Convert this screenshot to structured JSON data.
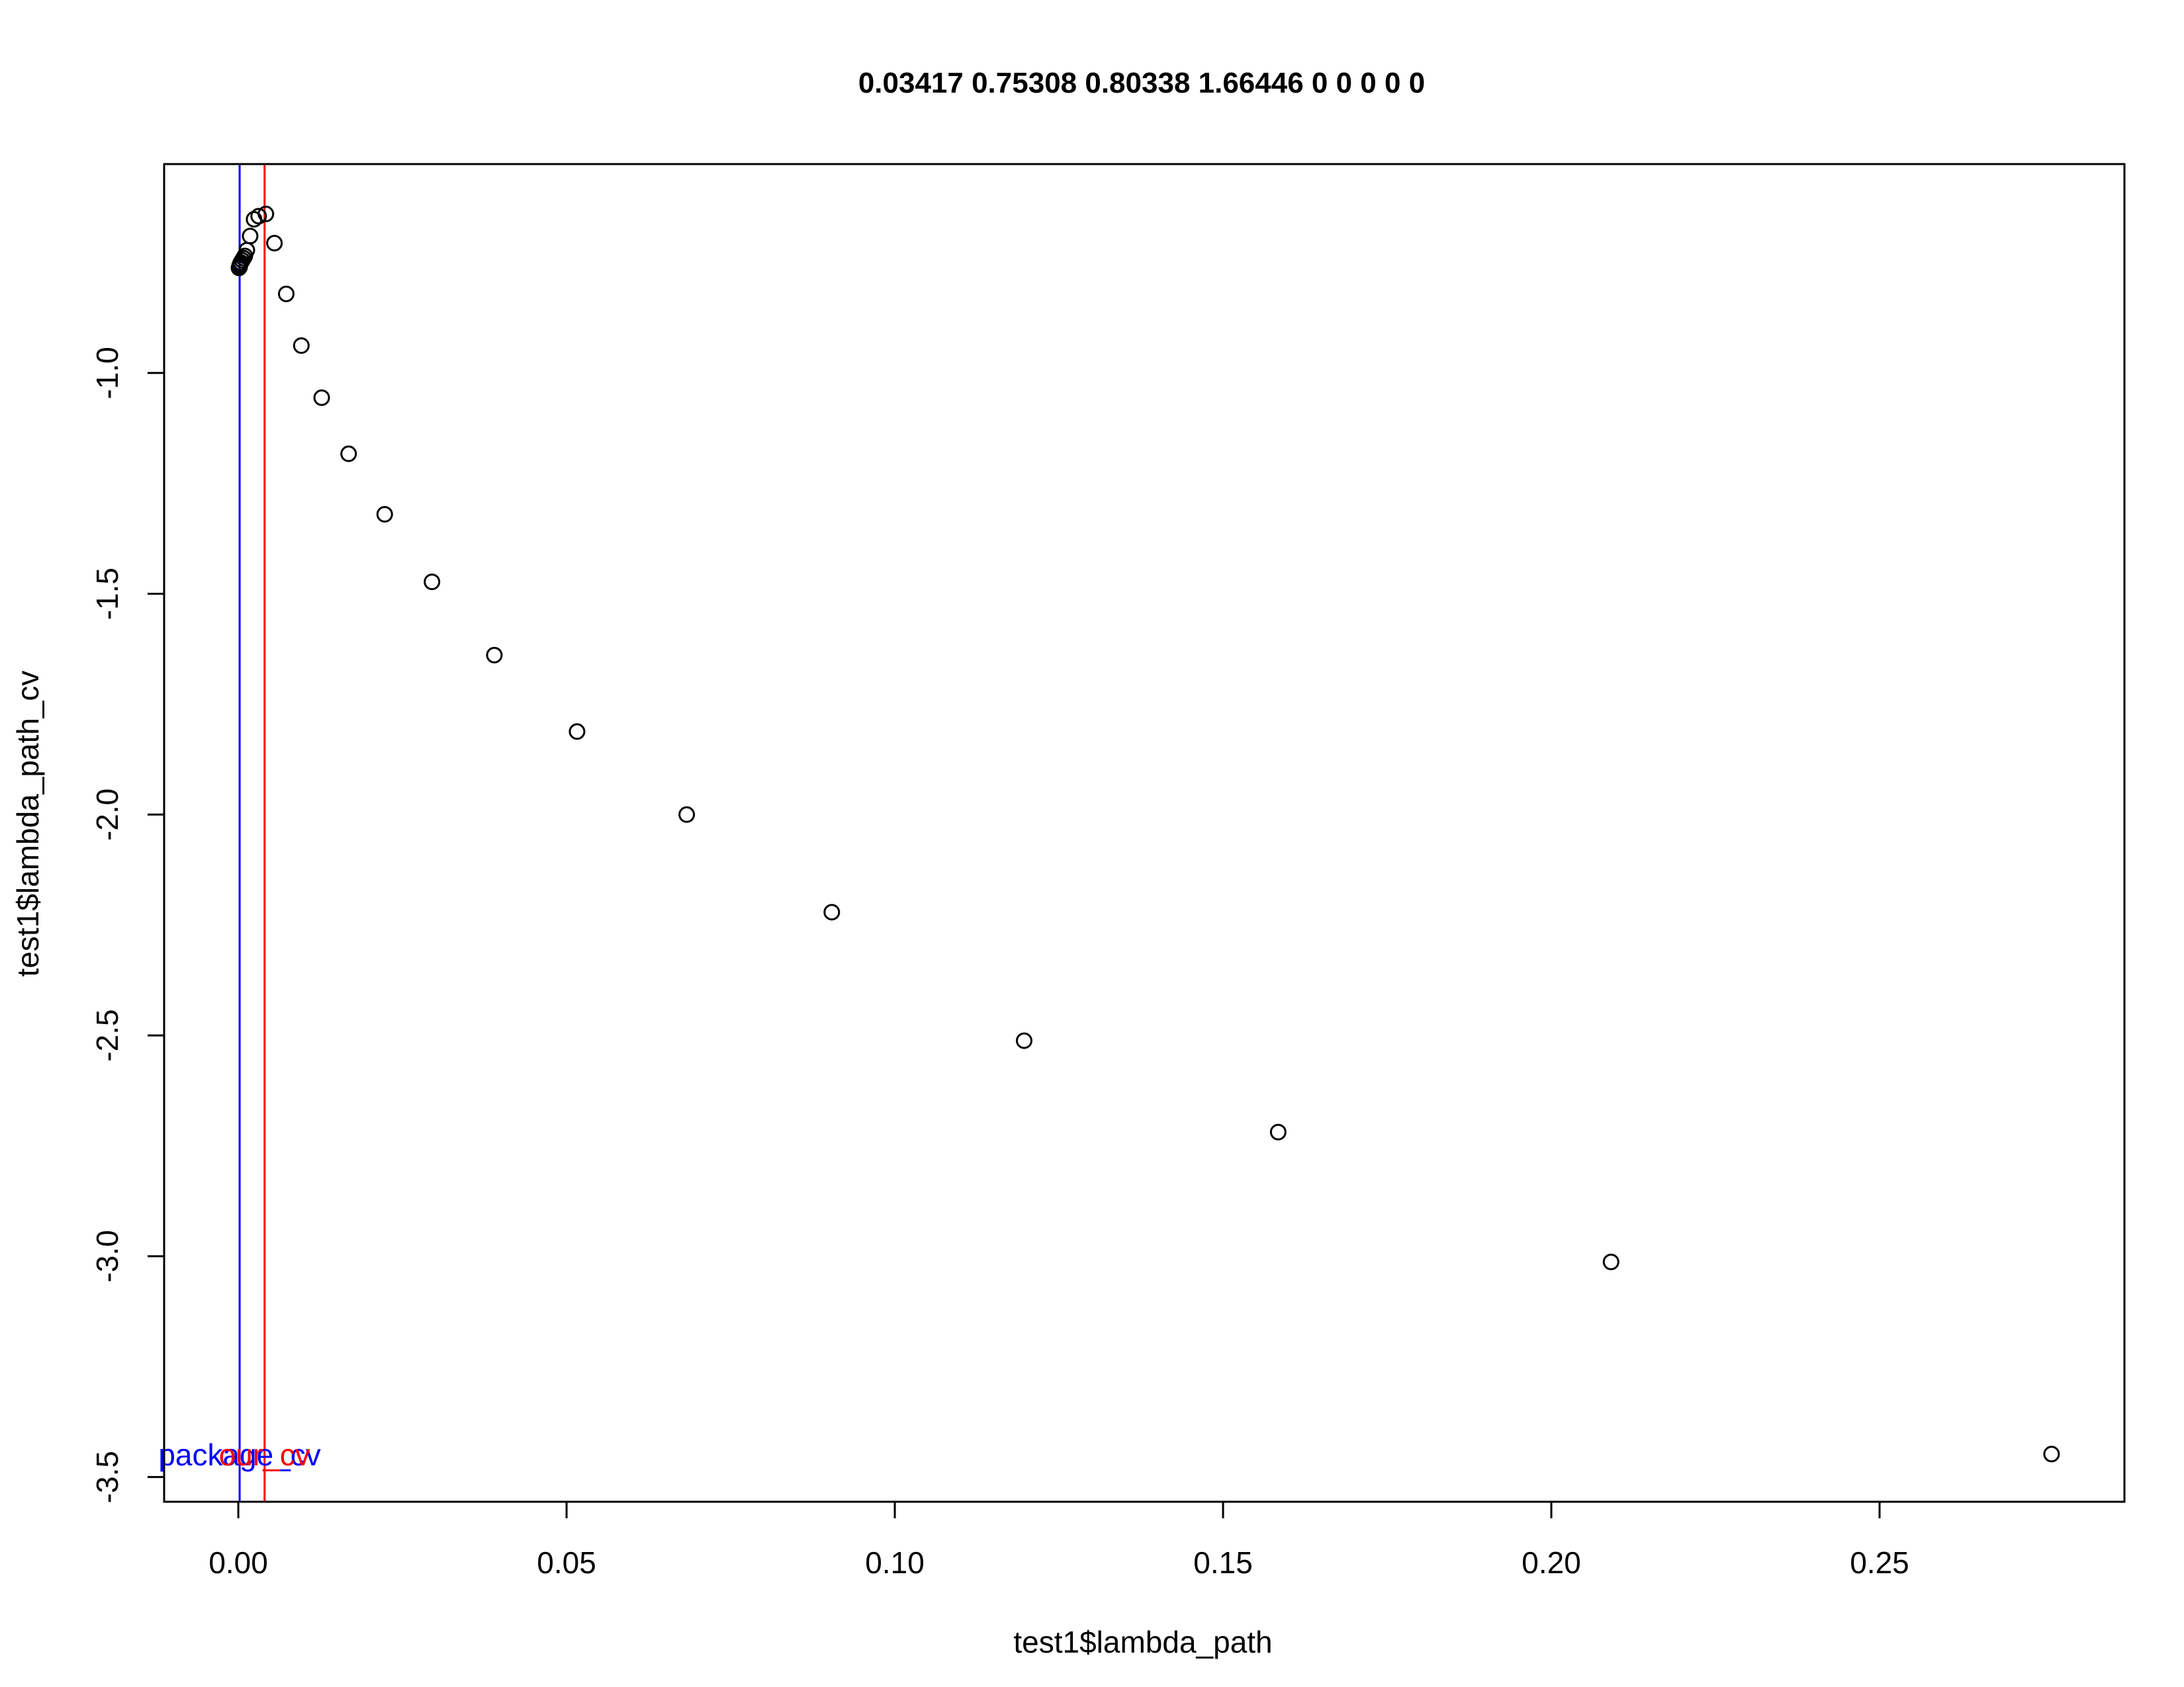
{
  "chart_data": {
    "type": "scatter",
    "title": "0.03417 0.75308 0.80338 1.66446 0 0 0 0 0",
    "xlabel": "test1$lambda_path",
    "ylabel": "test1$lambda_path_cv",
    "xlim": [
      -0.0113,
      0.2873
    ],
    "ylim": [
      -3.556,
      -0.527
    ],
    "xticks": [
      "0.00",
      "0.05",
      "0.10",
      "0.15",
      "0.20",
      "0.25"
    ],
    "xtick_values": [
      0,
      0.05,
      0.1,
      0.15,
      0.2,
      0.25
    ],
    "yticks": [
      "-1.0",
      "-1.5",
      "-2.0",
      "-2.5",
      "-3.0",
      "-3.5"
    ],
    "ytick_values": [
      -1.0,
      -1.5,
      -2.0,
      -2.5,
      -3.0,
      -3.5
    ],
    "grid": false,
    "x": [
      0.2762,
      0.2091,
      0.1584,
      0.1197,
      0.0904,
      0.0683,
      0.0516,
      0.039,
      0.0295,
      0.0223,
      0.0168,
      0.0127,
      0.0096,
      0.0073,
      0.0055,
      0.0042,
      0.0031,
      0.0024,
      0.0018,
      0.0013,
      0.001,
      0.0008,
      0.0006,
      0.0004,
      0.0003,
      0.0002,
      0.0002,
      0.0001
    ],
    "y": [
      -3.448,
      -3.013,
      -2.719,
      -2.512,
      -2.221,
      -2.0,
      -1.812,
      -1.639,
      -1.473,
      -1.32,
      -1.183,
      -1.056,
      -0.938,
      -0.821,
      -0.706,
      -0.64,
      -0.645,
      -0.652,
      -0.69,
      -0.722,
      -0.735,
      -0.74,
      -0.745,
      -0.75,
      -0.753,
      -0.757,
      -0.76,
      -0.762
    ],
    "vlines": [
      {
        "label": "package_cv",
        "x": 0.0002,
        "color": "#0000ff"
      },
      {
        "label": "our_cv",
        "x": 0.004,
        "color": "#ff0000"
      }
    ],
    "vline_label_y": -3.45
  }
}
